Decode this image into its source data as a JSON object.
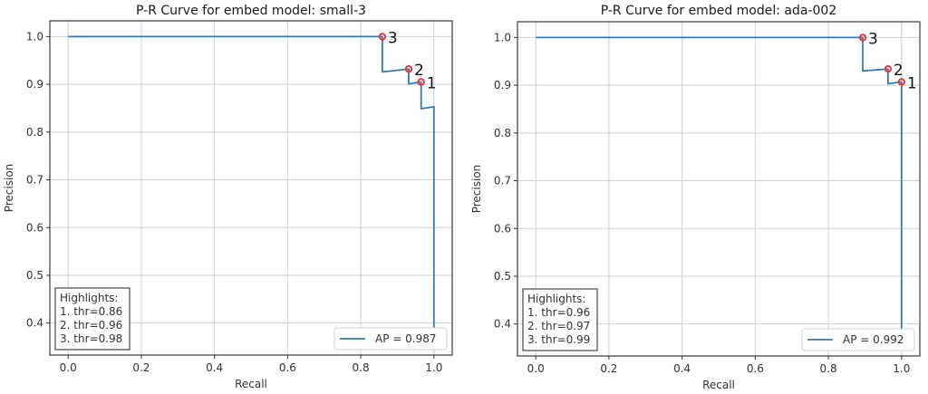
{
  "chart_data": [
    {
      "type": "line",
      "title": "P-R Curve for embed model: small-3",
      "xlabel": "Recall",
      "ylabel": "Precision",
      "xlim": [
        -0.05,
        1.05
      ],
      "ylim": [
        0.333,
        1.033
      ],
      "xticks": [
        "0.0",
        "0.2",
        "0.4",
        "0.6",
        "0.8",
        "1.0"
      ],
      "yticks": [
        "0.4",
        "0.5",
        "0.6",
        "0.7",
        "0.8",
        "0.9",
        "1.0"
      ],
      "grid": true,
      "series": [
        {
          "name": "AP = 0.987",
          "color": "#2f7bb7",
          "x": [
            0.0,
            0.859,
            0.859,
            0.931,
            0.931,
            0.965,
            0.965,
            1.0,
            1.0
          ],
          "y": [
            1.0,
            1.0,
            0.926,
            0.932,
            0.901,
            0.905,
            0.849,
            0.853,
            0.39
          ]
        }
      ],
      "highlights": [
        {
          "label": "1",
          "x": 0.965,
          "y": 0.905
        },
        {
          "label": "2",
          "x": 0.931,
          "y": 0.932
        },
        {
          "label": "3",
          "x": 0.859,
          "y": 1.0
        }
      ],
      "highlight_color": "#e53935",
      "highlight_box": [
        "Highlights:",
        "1. thr=0.86",
        "2. thr=0.96",
        "3. thr=0.98"
      ],
      "legend": {
        "text": "AP = 0.987",
        "placement": "lower right"
      },
      "highlight_box_placement": "lower left"
    },
    {
      "type": "line",
      "title": "P-R Curve for embed model: ada-002",
      "xlabel": "Recall",
      "ylabel": "Precision",
      "xlim": [
        -0.05,
        1.05
      ],
      "ylim": [
        0.333,
        1.033
      ],
      "xticks": [
        "0.0",
        "0.2",
        "0.4",
        "0.6",
        "0.8",
        "1.0"
      ],
      "yticks": [
        "0.4",
        "0.5",
        "0.6",
        "0.7",
        "0.8",
        "0.9",
        "1.0"
      ],
      "grid": true,
      "series": [
        {
          "name": "AP = 0.992",
          "color": "#2f7bb7",
          "x": [
            0.0,
            0.894,
            0.894,
            0.963,
            0.963,
            1.0,
            1.0
          ],
          "y": [
            1.0,
            1.0,
            0.93,
            0.934,
            0.903,
            0.907,
            0.39
          ]
        }
      ],
      "highlights": [
        {
          "label": "1",
          "x": 1.0,
          "y": 0.907
        },
        {
          "label": "2",
          "x": 0.963,
          "y": 0.934
        },
        {
          "label": "3",
          "x": 0.894,
          "y": 1.0
        }
      ],
      "highlight_color": "#e53935",
      "highlight_box": [
        "Highlights:",
        "1. thr=0.96",
        "2. thr=0.97",
        "3. thr=0.99"
      ],
      "legend": {
        "text": "AP = 0.992",
        "placement": "lower right"
      },
      "highlight_box_placement": "lower left"
    }
  ]
}
